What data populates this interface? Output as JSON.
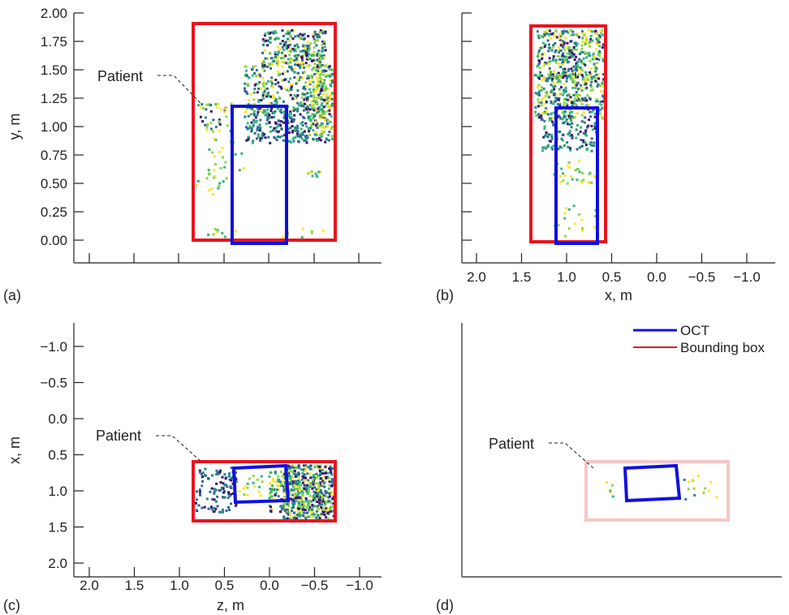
{
  "chart_data": [
    {
      "type": "scatter",
      "panel": "(a)",
      "view": "side",
      "xlabel": "",
      "ylabel": "y, m",
      "yticks": [
        "0.00",
        "0.25",
        "0.50",
        "0.75",
        "1.00",
        "1.25",
        "1.50",
        "1.75",
        "2.00"
      ],
      "ylim": [
        -0.2,
        2.0
      ],
      "annotation": "Patient",
      "bounding_box": {
        "u": [
          0,
          3.16
        ],
        "v": [
          0.0,
          1.88
        ]
      },
      "oct_box": {
        "u": [
          0.84,
          2.04
        ],
        "v": [
          -0.03,
          1.17
        ]
      },
      "grid": false,
      "legend": "none"
    },
    {
      "type": "scatter",
      "panel": "(b)",
      "view": "front",
      "xlabel": "x, m",
      "ylabel": "",
      "xticks": [
        "2.0",
        "1.5",
        "1.0",
        "0.5",
        "0.0",
        "−0.5",
        "−1.0"
      ],
      "xlim": [
        2.25,
        -1.3
      ],
      "bounding_box": {
        "x": [
          1.47,
          0.62
        ],
        "y": [
          0.0,
          1.88
        ]
      },
      "oct_box": {
        "x": [
          1.17,
          0.72
        ],
        "y": [
          -0.03,
          1.17
        ]
      },
      "grid": false,
      "legend": "none"
    },
    {
      "type": "scatter",
      "panel": "(c)",
      "view": "top",
      "xlabel": "z, m",
      "ylabel": "x, m",
      "xticks": [
        "2.0",
        "1.5",
        "1.0",
        "0.5",
        "0.0",
        "−0.5",
        "−1.0"
      ],
      "yticks": [
        "−1.0",
        "−0.5",
        "0.0",
        "0.5",
        "1.0",
        "1.5",
        "2.0"
      ],
      "xlim": [
        2.25,
        -1.3
      ],
      "ylim": [
        2.15,
        -1.3
      ],
      "annotation": "Patient",
      "bounding_box": {
        "z": [
          0.83,
          -0.75
        ],
        "x": [
          0.62,
          1.45
        ]
      },
      "oct_box_corners": [
        [
          0.38,
          0.72
        ],
        [
          0.2,
          0.7
        ],
        [
          0.18,
          1.15
        ],
        [
          0.36,
          1.16
        ]
      ],
      "grid": false,
      "legend": "none"
    },
    {
      "type": "scatter",
      "panel": "(d)",
      "view": "top, filtered",
      "xlabel": "",
      "ylabel": "",
      "annotation": "Patient",
      "legend_entries": [
        {
          "name": "OCT",
          "color": "#1010e0"
        },
        {
          "name": "Bounding box",
          "color": "#e8141e"
        }
      ],
      "legend": "top-right",
      "grid": false
    }
  ],
  "colors": {
    "oct": "#1010e0",
    "bounding_box": "#e8141e",
    "bounding_box_faded": "#f7c6c8",
    "points": [
      "#3b0f70",
      "#31688e",
      "#26828e",
      "#35b779",
      "#90d743",
      "#fde725"
    ]
  }
}
